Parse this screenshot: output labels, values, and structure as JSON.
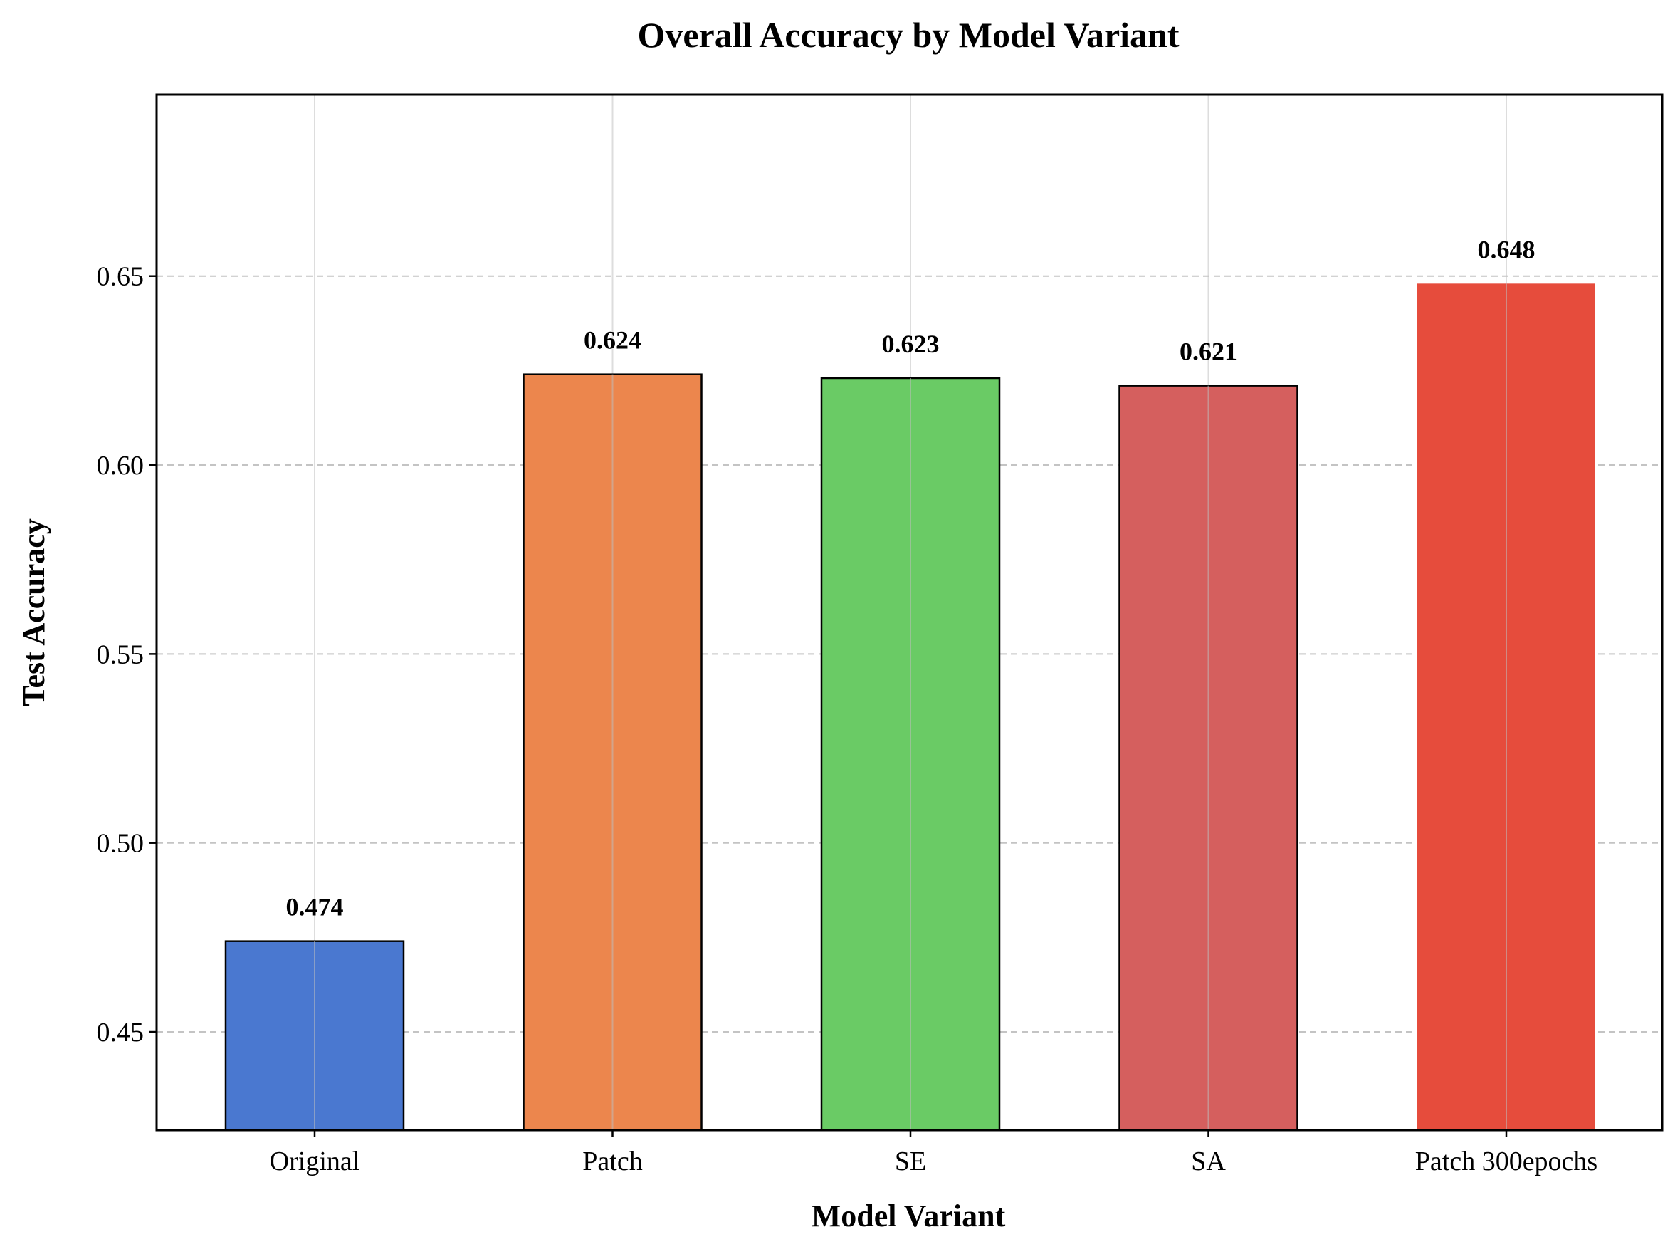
{
  "chart_data": {
    "type": "bar",
    "title": "Overall Accuracy by Model Variant",
    "xlabel": "Model Variant",
    "ylabel": "Test Accuracy",
    "categories": [
      "Original",
      "Patch",
      "SE",
      "SA",
      "Patch 300epochs"
    ],
    "values": [
      0.474,
      0.624,
      0.623,
      0.621,
      0.648
    ],
    "value_labels": [
      "0.474",
      "0.624",
      "0.623",
      "0.621",
      "0.648"
    ],
    "colors": [
      "#4a78d0",
      "#ec864d",
      "#6acb65",
      "#d55f5e",
      "#e64c3c"
    ],
    "edge": [
      true,
      true,
      true,
      true,
      false
    ],
    "ylim": [
      0.424,
      0.698
    ],
    "yticks": [
      0.45,
      0.5,
      0.55,
      0.6,
      0.65
    ],
    "ytick_labels": [
      "0.45",
      "0.50",
      "0.55",
      "0.60",
      "0.65"
    ],
    "grid": true
  }
}
